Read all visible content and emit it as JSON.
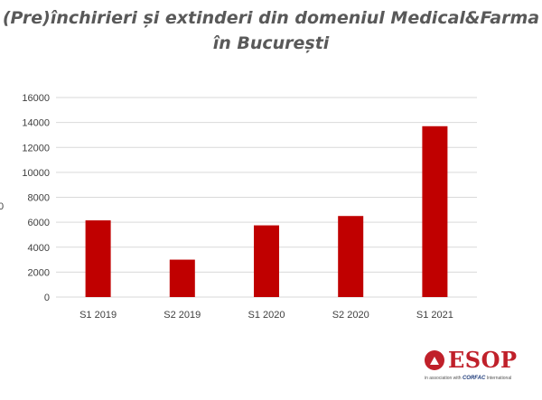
{
  "chart_data": {
    "type": "bar",
    "title_line1": "(Pre)închirieri și extinderi din domeniul Medical&Farma",
    "title_line2": "în București",
    "ylabel_fragment": "0",
    "categories": [
      "S1 2019",
      "S2 2019",
      "S1 2020",
      "S2 2020",
      "S1 2021"
    ],
    "values": [
      6150,
      3000,
      5750,
      6500,
      13700
    ],
    "ylim": [
      0,
      16000
    ],
    "ytick_labels": [
      "16000",
      "14000",
      "12000",
      "10000",
      "8000",
      "6000",
      "4000",
      "2000",
      "0"
    ],
    "grid": true,
    "bar_color": "#c00000",
    "grid_color": "#d9d9d9"
  },
  "logo": {
    "name": "ESOP",
    "tagline_prefix": "in association with",
    "tagline_brand": "CORFAC",
    "tagline_suffix": "International",
    "color": "#c0202a"
  }
}
